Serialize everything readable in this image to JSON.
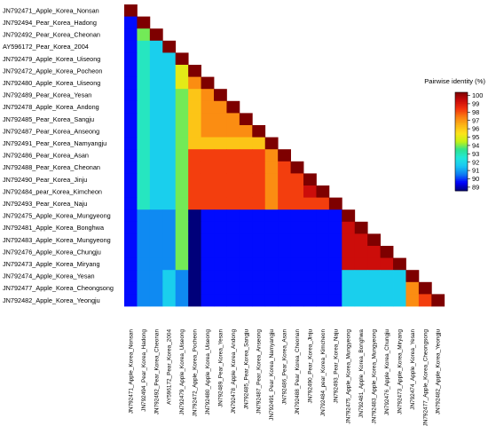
{
  "chart_data": {
    "type": "heatmap",
    "layout": "lower-triangle",
    "labels": [
      "JN792471_Apple_Korea_Nonsan",
      "JN792494_Pear_Korea_Hadong",
      "JN792492_Pear_Korea_Cheonan",
      "AY596172_Pear_Korea_2004",
      "JN792479_Apple_Korea_Uiseong",
      "JN792472_Apple_Korea_Pocheon",
      "JN792480_Apple_Korea_Uiseong",
      "JN792489_Pear_Korea_Yesan",
      "JN792478_Apple_Korea_Andong",
      "JN792485_Pear_Korea_Sangju",
      "JN792487_Pear_Korea_Anseong",
      "JN792491_Pear_Korea_Namyangju",
      "JN792486_Pear_Korea_Asan",
      "JN792488_Pear_Korea_Cheonan",
      "JN792490_Pear_Korea_Jinju",
      "JN792484_pear_Korea_Kimcheon",
      "JN792493_Pear_Korea_Naju",
      "JN792475_Apple_Korea_Mungyeong",
      "JN792481_Apple_Korea_Bonghwa",
      "JN792483_Apple_Korea_Mungyeong",
      "JN792476_Apple_Korea_Chungju",
      "JN792473_Apple_Korea_Miryang",
      "JN792474_Apple_Korea_Yesan",
      "JN792477_Apple_Korea_Cheongsong",
      "JN792482_Apple_Korea_Yeongju"
    ],
    "values": [
      [
        100
      ],
      [
        90,
        100
      ],
      [
        90,
        94,
        100
      ],
      [
        90,
        93,
        92,
        100
      ],
      [
        90,
        93,
        92,
        92,
        100
      ],
      [
        90,
        93,
        92,
        92,
        95,
        100
      ],
      [
        90,
        93,
        92,
        92,
        95,
        97,
        100
      ],
      [
        90,
        93,
        92,
        92,
        94,
        96,
        97,
        100
      ],
      [
        90,
        93,
        92,
        92,
        94,
        96,
        97,
        97,
        100
      ],
      [
        90,
        93,
        92,
        92,
        94,
        96,
        97,
        97,
        97,
        100
      ],
      [
        90,
        93,
        92,
        92,
        94,
        96,
        97,
        97,
        97,
        97,
        100
      ],
      [
        90,
        93,
        92,
        92,
        94,
        96,
        96,
        96,
        96,
        96,
        96,
        100
      ],
      [
        90,
        93,
        92,
        92,
        94,
        98,
        98,
        98,
        98,
        98,
        98,
        97,
        100
      ],
      [
        90,
        93,
        92,
        92,
        94,
        98,
        98,
        98,
        98,
        98,
        98,
        97,
        98,
        100
      ],
      [
        90,
        93,
        92,
        92,
        94,
        98,
        98,
        98,
        98,
        98,
        98,
        97,
        98,
        98,
        100
      ],
      [
        90,
        93,
        92,
        92,
        94,
        98,
        98,
        98,
        98,
        98,
        98,
        97,
        98,
        98,
        99,
        100
      ],
      [
        90,
        93,
        92,
        92,
        94,
        98,
        98,
        98,
        98,
        98,
        98,
        97,
        98,
        98,
        98,
        98,
        100
      ],
      [
        90,
        91,
        91,
        91,
        94,
        89,
        90,
        90,
        90,
        90,
        90,
        90,
        90,
        90,
        90,
        90,
        90,
        100
      ],
      [
        90,
        91,
        91,
        91,
        94,
        89,
        90,
        90,
        90,
        90,
        90,
        90,
        90,
        90,
        90,
        90,
        90,
        99,
        100
      ],
      [
        90,
        91,
        91,
        91,
        94,
        89,
        90,
        90,
        90,
        90,
        90,
        90,
        90,
        90,
        90,
        90,
        90,
        99,
        99,
        100
      ],
      [
        90,
        91,
        91,
        91,
        94,
        89,
        90,
        90,
        90,
        90,
        90,
        90,
        90,
        90,
        90,
        90,
        90,
        99,
        99,
        99,
        100
      ],
      [
        90,
        91,
        91,
        91,
        94,
        89,
        90,
        90,
        90,
        90,
        90,
        90,
        90,
        90,
        90,
        90,
        90,
        99,
        99,
        99,
        99,
        100
      ],
      [
        90,
        91,
        91,
        92,
        91,
        89,
        90,
        90,
        90,
        90,
        90,
        90,
        90,
        90,
        90,
        90,
        90,
        92,
        92,
        92,
        92,
        92,
        100
      ],
      [
        90,
        91,
        91,
        92,
        91,
        89,
        90,
        90,
        90,
        90,
        90,
        90,
        90,
        90,
        90,
        90,
        90,
        92,
        92,
        92,
        92,
        92,
        97,
        100
      ],
      [
        90,
        91,
        91,
        92,
        91,
        89,
        90,
        90,
        90,
        90,
        90,
        90,
        90,
        90,
        90,
        90,
        90,
        92,
        92,
        92,
        92,
        92,
        97,
        98,
        100
      ]
    ],
    "legend": {
      "title": "Pairwise identity (%)",
      "ticks": [
        100,
        99,
        98,
        97,
        96,
        95,
        94,
        93,
        92,
        91,
        90,
        89
      ],
      "min": 89,
      "max": 100,
      "placement": "right"
    },
    "colors": [
      "#00007a",
      "#0000ff",
      "#0d7df2",
      "#18c6f3",
      "#21e7dc",
      "#2ee38f",
      "#c6f313",
      "#fde31a",
      "#fcb416",
      "#fa7e11",
      "#f2300d",
      "#c80a0a",
      "#7e0000"
    ],
    "grid": false
  }
}
